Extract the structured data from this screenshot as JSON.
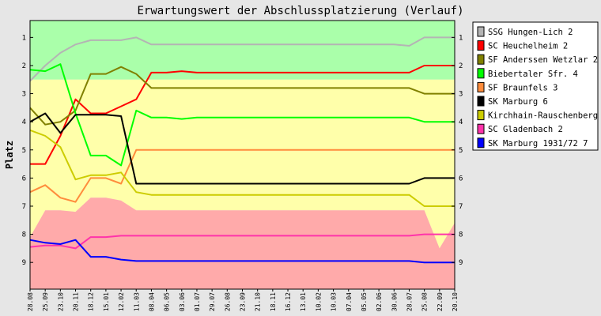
{
  "chart_data": {
    "type": "line",
    "title": "Erwartungswert der Abschlussplatzierung (Verlauf)",
    "ylabel": "Platz",
    "xlabel": "",
    "ylim": [
      0.4,
      9.95
    ],
    "y_ticks": [
      1,
      2,
      3,
      4,
      5,
      6,
      7,
      8,
      9
    ],
    "grid": false,
    "legend_position": "right",
    "x": [
      "28.08",
      "25.09",
      "23.10",
      "20.11",
      "18.12",
      "15.01",
      "12.02",
      "11.03",
      "08.04",
      "06.05",
      "03.06",
      "01.07",
      "29.07",
      "26.08",
      "23.09",
      "21.10",
      "18.11",
      "16.12",
      "13.01",
      "10.02",
      "10.03",
      "07.04",
      "05.05",
      "02.06",
      "30.06",
      "28.07",
      "25.08",
      "22.09",
      "20.10"
    ],
    "bands": {
      "colors": [
        "#aaffaa",
        "#ffffaa",
        "#ffaaaa"
      ],
      "promotion_boundary": [
        2.5,
        2.5,
        2.5,
        2.5,
        2.5,
        2.5,
        2.5,
        2.5,
        2.5,
        2.5,
        2.5,
        2.5,
        2.5,
        2.5,
        2.5,
        2.5,
        2.5,
        2.5,
        2.5,
        2.5,
        2.5,
        2.5,
        2.5,
        2.5,
        2.5,
        2.5,
        2.5,
        2.5,
        2.5
      ],
      "relegation_boundary": [
        8.1,
        7.15,
        7.15,
        7.2,
        6.7,
        6.7,
        6.8,
        7.15,
        7.15,
        7.15,
        7.15,
        7.15,
        7.15,
        7.15,
        7.15,
        7.15,
        7.15,
        7.15,
        7.15,
        7.15,
        7.15,
        7.15,
        7.15,
        7.15,
        7.15,
        7.15,
        7.15,
        8.5,
        7.6
      ]
    },
    "series": [
      {
        "name": "SSG Hungen-Lich 2",
        "color": "#b4b4b4",
        "values": [
          2.55,
          2.0,
          1.55,
          1.25,
          1.1,
          1.1,
          1.1,
          1.0,
          1.25,
          1.25,
          1.25,
          1.25,
          1.25,
          1.25,
          1.25,
          1.25,
          1.25,
          1.25,
          1.25,
          1.25,
          1.25,
          1.25,
          1.25,
          1.25,
          1.25,
          1.3,
          1.0,
          1.0,
          1.0
        ]
      },
      {
        "name": "SC Heuchelheim 2",
        "color": "#ff0000",
        "values": [
          5.5,
          5.5,
          4.5,
          3.2,
          3.7,
          3.7,
          3.45,
          3.2,
          2.25,
          2.25,
          2.2,
          2.25,
          2.25,
          2.25,
          2.25,
          2.25,
          2.25,
          2.25,
          2.25,
          2.25,
          2.25,
          2.25,
          2.25,
          2.25,
          2.25,
          2.25,
          2.0,
          2.0,
          2.0
        ]
      },
      {
        "name": "SF Anderssen Wetzlar 2",
        "color": "#808000",
        "values": [
          3.5,
          4.1,
          4.0,
          3.6,
          2.3,
          2.3,
          2.05,
          2.3,
          2.8,
          2.8,
          2.8,
          2.8,
          2.8,
          2.8,
          2.8,
          2.8,
          2.8,
          2.8,
          2.8,
          2.8,
          2.8,
          2.8,
          2.8,
          2.8,
          2.8,
          2.8,
          3.0,
          3.0,
          3.0
        ]
      },
      {
        "name": "Biebertaler Sfr. 4",
        "color": "#00ff00",
        "values": [
          2.15,
          2.2,
          1.95,
          3.7,
          5.2,
          5.2,
          5.55,
          3.6,
          3.85,
          3.85,
          3.9,
          3.85,
          3.85,
          3.85,
          3.85,
          3.85,
          3.85,
          3.85,
          3.85,
          3.85,
          3.85,
          3.85,
          3.85,
          3.85,
          3.85,
          3.85,
          4.0,
          4.0,
          4.0
        ]
      },
      {
        "name": "SF Braunfels 3",
        "color": "#ff8c3c",
        "values": [
          6.5,
          6.25,
          6.7,
          6.85,
          6.0,
          6.0,
          6.2,
          5.0,
          5.0,
          5.0,
          5.0,
          5.0,
          5.0,
          5.0,
          5.0,
          5.0,
          5.0,
          5.0,
          5.0,
          5.0,
          5.0,
          5.0,
          5.0,
          5.0,
          5.0,
          5.0,
          5.0,
          5.0,
          5.0
        ]
      },
      {
        "name": "SK Marburg 6",
        "color": "#000000",
        "values": [
          4.0,
          3.7,
          4.4,
          3.75,
          3.75,
          3.75,
          3.8,
          6.2,
          6.2,
          6.2,
          6.2,
          6.2,
          6.2,
          6.2,
          6.2,
          6.2,
          6.2,
          6.2,
          6.2,
          6.2,
          6.2,
          6.2,
          6.2,
          6.2,
          6.2,
          6.2,
          6.0,
          6.0,
          6.0
        ]
      },
      {
        "name": "Kirchhain-Rauschenberg",
        "color": "#cccc00",
        "values": [
          4.3,
          4.5,
          4.9,
          6.05,
          5.9,
          5.9,
          5.8,
          6.5,
          6.6,
          6.6,
          6.6,
          6.6,
          6.6,
          6.6,
          6.6,
          6.6,
          6.6,
          6.6,
          6.6,
          6.6,
          6.6,
          6.6,
          6.6,
          6.6,
          6.6,
          6.6,
          7.0,
          7.0,
          7.0
        ]
      },
      {
        "name": "SC Gladenbach 2",
        "color": "#ff33aa",
        "values": [
          8.45,
          8.4,
          8.4,
          8.5,
          8.1,
          8.1,
          8.05,
          8.05,
          8.05,
          8.05,
          8.05,
          8.05,
          8.05,
          8.05,
          8.05,
          8.05,
          8.05,
          8.05,
          8.05,
          8.05,
          8.05,
          8.05,
          8.05,
          8.05,
          8.05,
          8.05,
          8.0,
          8.0,
          8.0
        ]
      },
      {
        "name": "SK Marburg 1931/72 7",
        "color": "#0000ff",
        "values": [
          8.2,
          8.3,
          8.35,
          8.2,
          8.8,
          8.8,
          8.9,
          8.95,
          8.95,
          8.95,
          8.95,
          8.95,
          8.95,
          8.95,
          8.95,
          8.95,
          8.95,
          8.95,
          8.95,
          8.95,
          8.95,
          8.95,
          8.95,
          8.95,
          8.95,
          8.95,
          9.0,
          9.0,
          9.0
        ]
      }
    ]
  }
}
